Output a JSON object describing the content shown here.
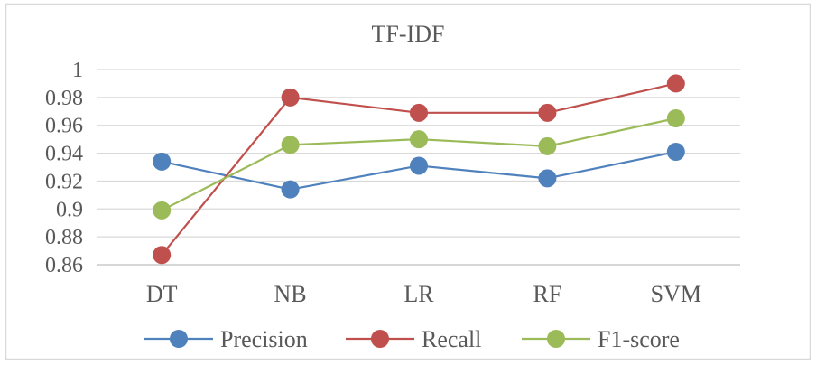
{
  "chart_data": {
    "type": "line",
    "title": "TF-IDF",
    "xlabel": "",
    "ylabel": "",
    "categories": [
      "DT",
      "NB",
      "LR",
      "RF",
      "SVM"
    ],
    "ylim": [
      0.86,
      1.0
    ],
    "yticks": [
      0.86,
      0.88,
      0.9,
      0.92,
      0.94,
      0.96,
      0.98,
      1
    ],
    "ytick_labels": [
      "0.86",
      "0.88",
      "0.9",
      "0.92",
      "0.94",
      "0.96",
      "0.98",
      "1"
    ],
    "grid": true,
    "legend_position": "bottom",
    "series": [
      {
        "name": "Precision",
        "color": "#4F81BD",
        "values": [
          0.934,
          0.914,
          0.931,
          0.922,
          0.941
        ]
      },
      {
        "name": "Recall",
        "color": "#C0504D",
        "values": [
          0.867,
          0.98,
          0.969,
          0.969,
          0.99
        ]
      },
      {
        "name": "F1-score",
        "color": "#9BBB59",
        "values": [
          0.899,
          0.946,
          0.95,
          0.945,
          0.965
        ]
      }
    ]
  }
}
